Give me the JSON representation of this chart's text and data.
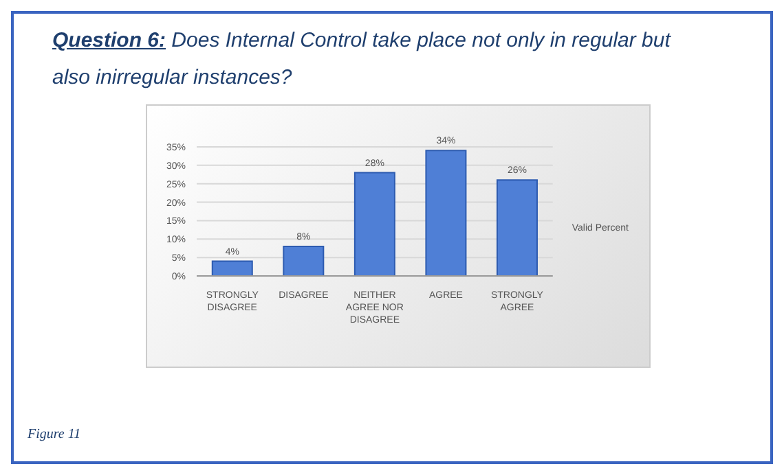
{
  "chart_data": {
    "type": "bar",
    "title": "Question 6: Does Internal Control take place not only in regular but also inirregular instances?",
    "categories": [
      "STRONGLY DISAGREE",
      "DISAGREE",
      "NEITHER AGREE NOR DISAGREE",
      "AGREE",
      "STRONGLY AGREE"
    ],
    "series": [
      {
        "name": "Valid Percent",
        "color": "#4f7fd6",
        "values": [
          4,
          8,
          28,
          34,
          26
        ],
        "value_labels": [
          "4%",
          "8%",
          "28%",
          "34%",
          "26%"
        ]
      }
    ],
    "ylim": [
      0,
      35
    ],
    "yticks": [
      {
        "value": 0,
        "label": "0%"
      },
      {
        "value": 5,
        "label": "5%"
      },
      {
        "value": 10,
        "label": "10%"
      },
      {
        "value": 15,
        "label": "15%"
      },
      {
        "value": 20,
        "label": "20%"
      },
      {
        "value": 25,
        "label": "25%"
      },
      {
        "value": 30,
        "label": "30%"
      },
      {
        "value": 35,
        "label": "35%"
      }
    ],
    "grid": "y",
    "legend": "right",
    "annotations": [
      "Figure 11"
    ]
  }
}
